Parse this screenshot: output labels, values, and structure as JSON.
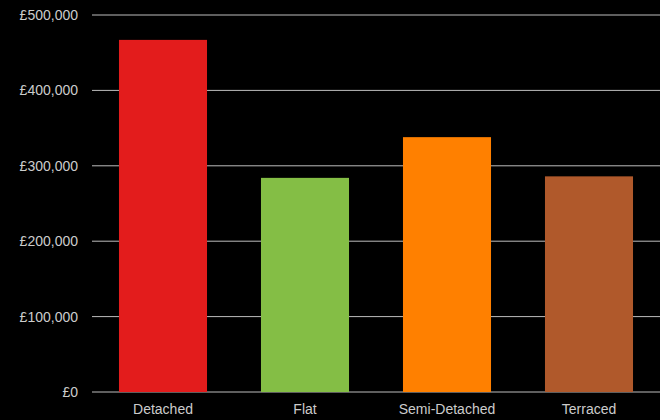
{
  "chart_data": {
    "type": "bar",
    "categories": [
      "Detached",
      "Flat",
      "Semi-Detached",
      "Terraced"
    ],
    "values": [
      467000,
      284000,
      338000,
      286000
    ],
    "colors": [
      "#e31c1c",
      "#84be45",
      "#ff8000",
      "#b0592b"
    ],
    "ylim": [
      0,
      500000
    ],
    "yticks": [
      {
        "value": 0,
        "label": "£0"
      },
      {
        "value": 100000,
        "label": "£100,000"
      },
      {
        "value": 200000,
        "label": "£200,000"
      },
      {
        "value": 300000,
        "label": "£300,000"
      },
      {
        "value": 400000,
        "label": "£400,000"
      },
      {
        "value": 500000,
        "label": "£500,000"
      }
    ],
    "grid": true
  }
}
